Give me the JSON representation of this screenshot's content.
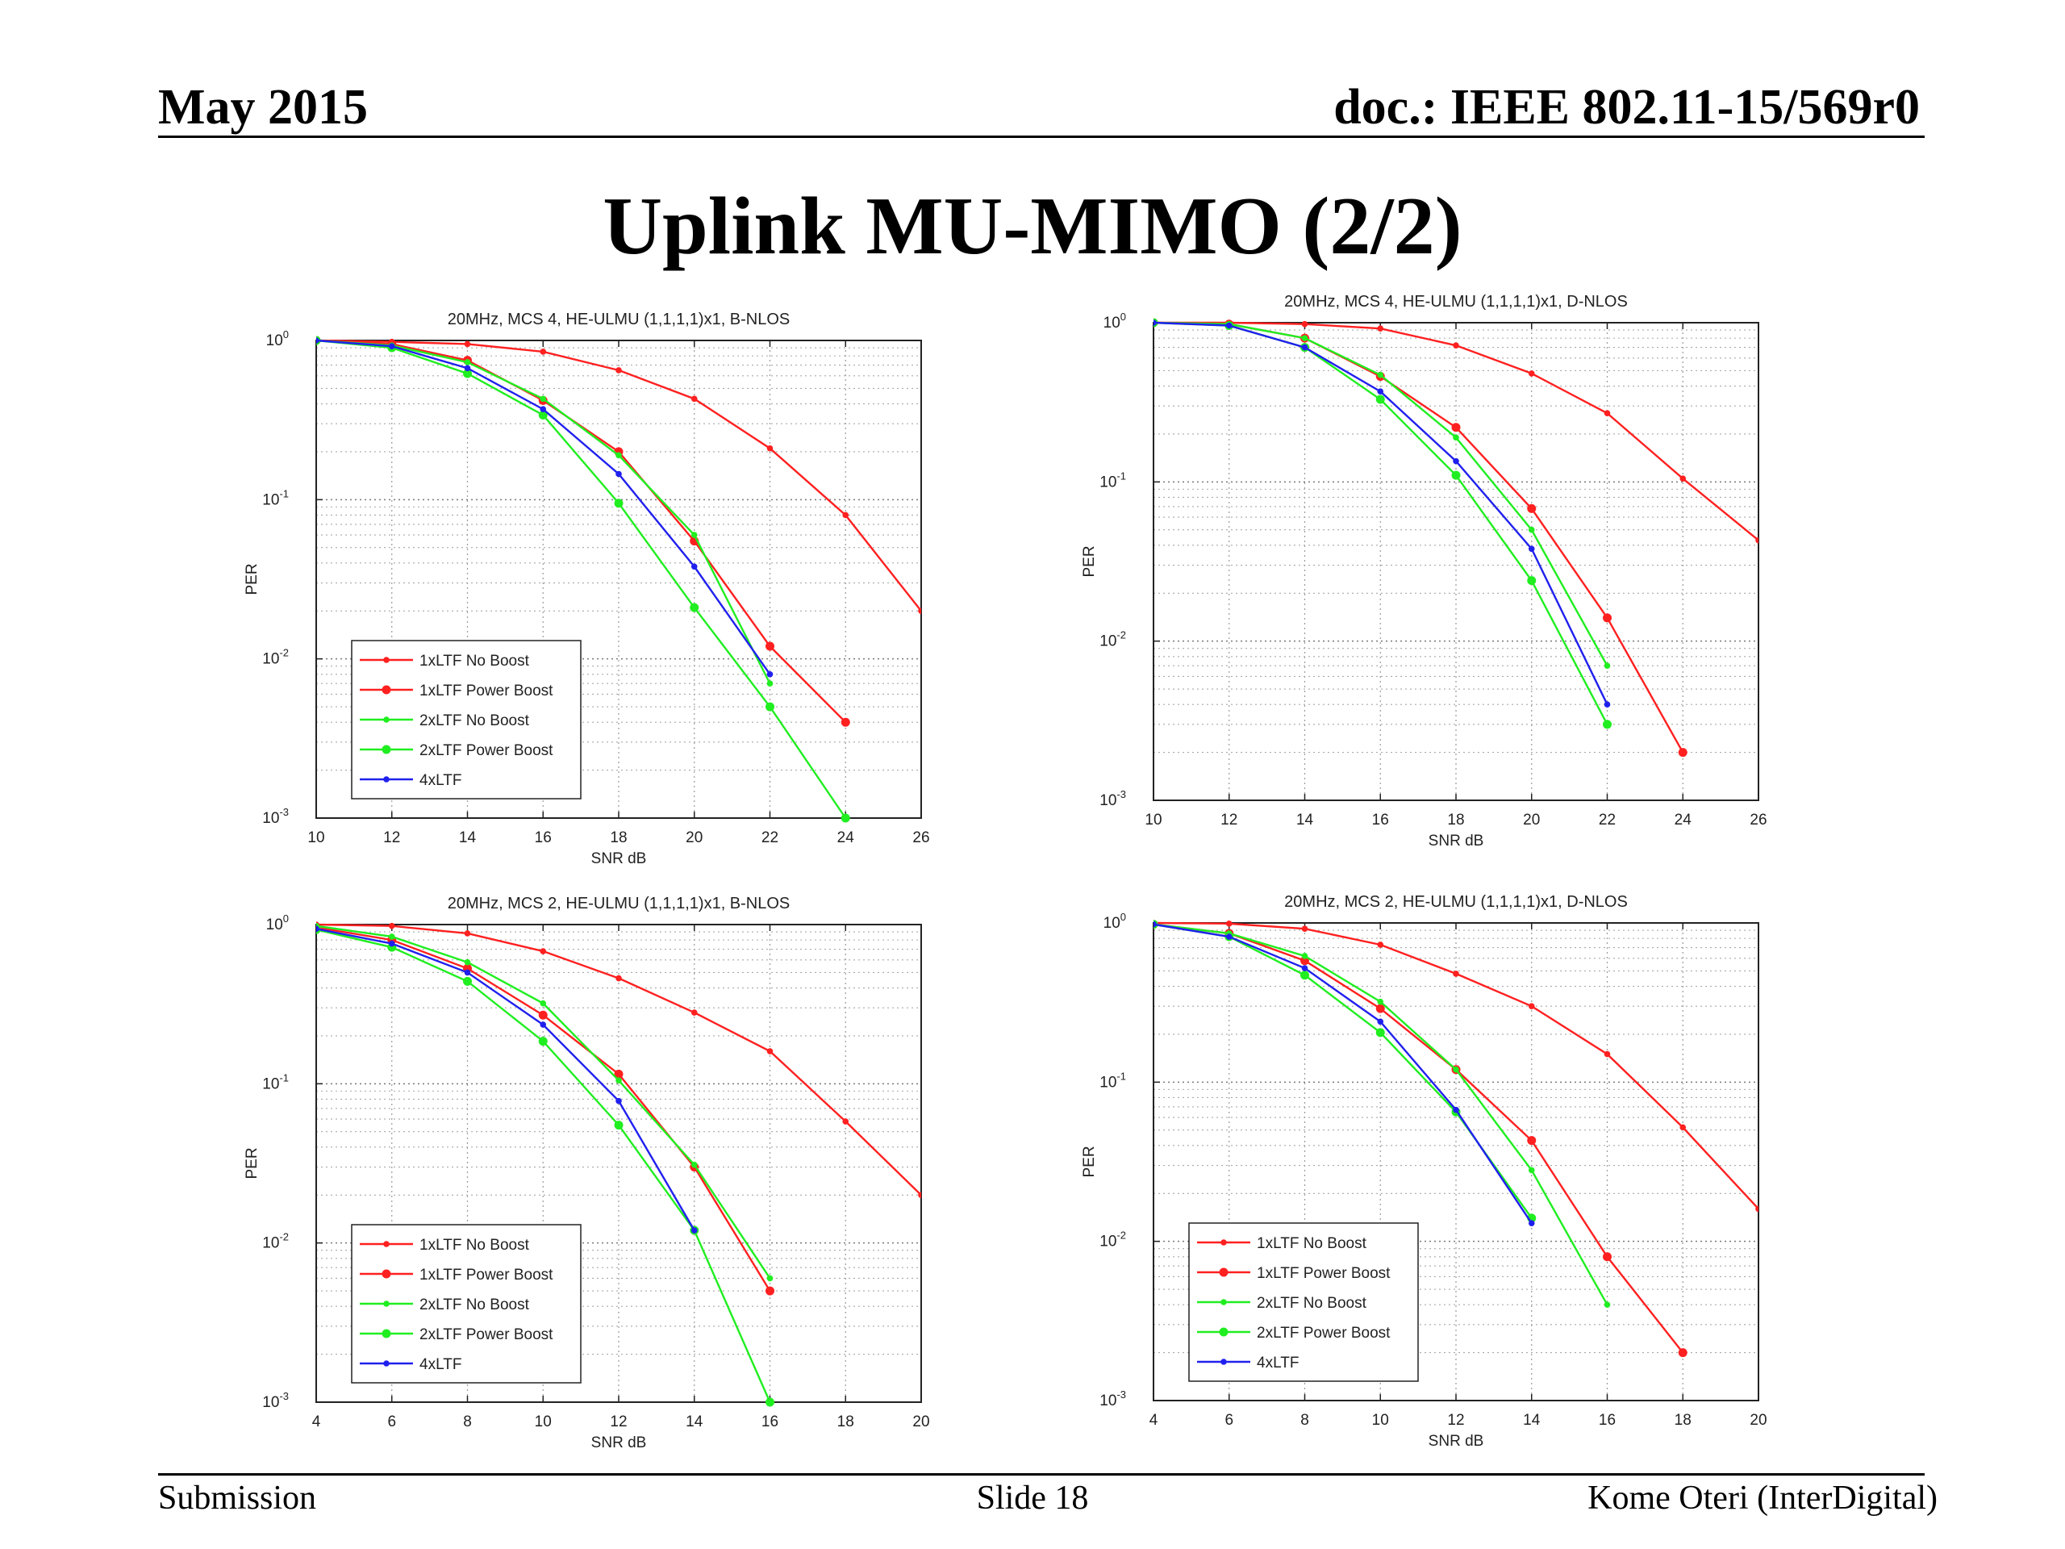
{
  "header": {
    "date": "May 2015",
    "doc_id": "doc.: IEEE 802.11-15/569r0"
  },
  "slide": {
    "title": "Uplink MU-MIMO (2/2)"
  },
  "footer": {
    "left": "Submission",
    "center": "Slide 18",
    "right": "Kome Oteri (InterDigital)"
  },
  "chart_data": [
    {
      "type": "line",
      "title": "20MHz, MCS 4, HE-ULMU (1,1,1,1)x1, B-NLOS",
      "xlabel": "SNR dB",
      "ylabel": "PER",
      "xlim": [
        10,
        26
      ],
      "ylim": [
        0.001,
        1
      ],
      "y_scale": "log",
      "x_ticks": [
        "10",
        "12",
        "14",
        "16",
        "18",
        "20",
        "22",
        "24",
        "26"
      ],
      "y_ticks": [
        {
          "base": "10",
          "exp": "0"
        },
        {
          "base": "10",
          "exp": "-1"
        },
        {
          "base": "10",
          "exp": "-2"
        },
        {
          "base": "10",
          "exp": "-3"
        }
      ],
      "grid": true,
      "legend_position": "lower-left",
      "series": [
        {
          "name": "1xLTF No Boost",
          "color": "#ff2020",
          "marker": "dot",
          "x": [
            10,
            12,
            14,
            16,
            18,
            20,
            22,
            24,
            26
          ],
          "y": [
            1,
            0.98,
            0.95,
            0.85,
            0.65,
            0.43,
            0.21,
            0.08,
            0.02
          ]
        },
        {
          "name": "1xLTF Power Boost",
          "color": "#ff2020",
          "marker": "star",
          "x": [
            10,
            12,
            14,
            16,
            18,
            20,
            22,
            24
          ],
          "y": [
            1,
            0.95,
            0.75,
            0.42,
            0.2,
            0.055,
            0.012,
            0.004
          ]
        },
        {
          "name": "2xLTF No Boost",
          "color": "#20ee20",
          "marker": "dot",
          "x": [
            10,
            12,
            14,
            16,
            18,
            20,
            22
          ],
          "y": [
            1,
            0.93,
            0.73,
            0.43,
            0.19,
            0.06,
            0.007
          ]
        },
        {
          "name": "2xLTF Power Boost",
          "color": "#20ee20",
          "marker": "star",
          "x": [
            10,
            12,
            14,
            16,
            18,
            20,
            22,
            24
          ],
          "y": [
            1,
            0.9,
            0.62,
            0.34,
            0.095,
            0.021,
            0.005,
            0.001
          ]
        },
        {
          "name": "4xLTF",
          "color": "#2020ee",
          "marker": "dot",
          "x": [
            10,
            12,
            14,
            16,
            18,
            20,
            22
          ],
          "y": [
            1,
            0.92,
            0.67,
            0.37,
            0.145,
            0.038,
            0.008
          ]
        }
      ]
    },
    {
      "type": "line",
      "title": "20MHz, MCS 4, HE-ULMU (1,1,1,1)x1, D-NLOS",
      "xlabel": "SNR dB",
      "ylabel": "PER",
      "xlim": [
        10,
        26
      ],
      "ylim": [
        0.001,
        1
      ],
      "y_scale": "log",
      "x_ticks": [
        "10",
        "12",
        "14",
        "16",
        "18",
        "20",
        "22",
        "24",
        "26"
      ],
      "y_ticks": [
        {
          "base": "10",
          "exp": "0"
        },
        {
          "base": "10",
          "exp": "-1"
        },
        {
          "base": "10",
          "exp": "-2"
        },
        {
          "base": "10",
          "exp": "-3"
        }
      ],
      "grid": true,
      "legend_position": "none",
      "series": [
        {
          "name": "1xLTF No Boost",
          "color": "#ff2020",
          "marker": "dot",
          "x": [
            10,
            12,
            14,
            16,
            18,
            20,
            22,
            24,
            26
          ],
          "y": [
            1,
            1,
            0.98,
            0.92,
            0.72,
            0.48,
            0.27,
            0.105,
            0.043
          ]
        },
        {
          "name": "1xLTF Power Boost",
          "color": "#ff2020",
          "marker": "star",
          "x": [
            10,
            12,
            14,
            16,
            18,
            20,
            22,
            24
          ],
          "y": [
            1,
            0.98,
            0.8,
            0.46,
            0.22,
            0.068,
            0.014,
            0.002
          ]
        },
        {
          "name": "2xLTF No Boost",
          "color": "#20ee20",
          "marker": "dot",
          "x": [
            10,
            12,
            14,
            16,
            18,
            20,
            22
          ],
          "y": [
            1,
            0.98,
            0.8,
            0.47,
            0.19,
            0.05,
            0.007
          ]
        },
        {
          "name": "2xLTF Power Boost",
          "color": "#20ee20",
          "marker": "star",
          "x": [
            10,
            12,
            14,
            16,
            18,
            20,
            22
          ],
          "y": [
            1,
            0.96,
            0.7,
            0.33,
            0.11,
            0.024,
            0.003
          ]
        },
        {
          "name": "4xLTF",
          "color": "#2020ee",
          "marker": "dot",
          "x": [
            10,
            12,
            14,
            16,
            18,
            20,
            22
          ],
          "y": [
            1,
            0.96,
            0.7,
            0.37,
            0.135,
            0.038,
            0.004
          ]
        }
      ]
    },
    {
      "type": "line",
      "title": "20MHz, MCS 2, HE-ULMU (1,1,1,1)x1, B-NLOS",
      "xlabel": "SNR dB",
      "ylabel": "PER",
      "xlim": [
        4,
        20
      ],
      "ylim": [
        0.001,
        1
      ],
      "y_scale": "log",
      "x_ticks": [
        "4",
        "6",
        "8",
        "10",
        "12",
        "14",
        "16",
        "18",
        "20"
      ],
      "y_ticks": [
        {
          "base": "10",
          "exp": "0"
        },
        {
          "base": "10",
          "exp": "-1"
        },
        {
          "base": "10",
          "exp": "-2"
        },
        {
          "base": "10",
          "exp": "-3"
        }
      ],
      "grid": true,
      "legend_position": "lower-left",
      "series": [
        {
          "name": "1xLTF No Boost",
          "color": "#ff2020",
          "marker": "dot",
          "x": [
            4,
            6,
            8,
            10,
            12,
            14,
            16,
            18,
            20
          ],
          "y": [
            1,
            0.98,
            0.88,
            0.68,
            0.46,
            0.28,
            0.16,
            0.058,
            0.02
          ]
        },
        {
          "name": "1xLTF Power Boost",
          "color": "#ff2020",
          "marker": "star",
          "x": [
            4,
            6,
            8,
            10,
            12,
            14,
            16
          ],
          "y": [
            0.96,
            0.8,
            0.53,
            0.27,
            0.115,
            0.03,
            0.005
          ]
        },
        {
          "name": "2xLTF No Boost",
          "color": "#20ee20",
          "marker": "dot",
          "x": [
            4,
            6,
            8,
            10,
            12,
            14,
            16
          ],
          "y": [
            0.98,
            0.84,
            0.58,
            0.32,
            0.105,
            0.031,
            0.006
          ]
        },
        {
          "name": "2xLTF Power Boost",
          "color": "#20ee20",
          "marker": "star",
          "x": [
            4,
            6,
            8,
            10,
            12,
            14,
            16
          ],
          "y": [
            0.93,
            0.72,
            0.44,
            0.185,
            0.055,
            0.012,
            0.001
          ]
        },
        {
          "name": "4xLTF",
          "color": "#2020ee",
          "marker": "dot",
          "x": [
            4,
            6,
            8,
            10,
            12,
            14
          ],
          "y": [
            0.94,
            0.76,
            0.5,
            0.235,
            0.078,
            0.012
          ]
        }
      ]
    },
    {
      "type": "line",
      "title": "20MHz, MCS 2, HE-ULMU (1,1,1,1)x1, D-NLOS",
      "xlabel": "SNR dB",
      "ylabel": "PER",
      "xlim": [
        4,
        20
      ],
      "ylim": [
        0.001,
        1
      ],
      "y_scale": "log",
      "x_ticks": [
        "4",
        "6",
        "8",
        "10",
        "12",
        "14",
        "16",
        "18",
        "20"
      ],
      "y_ticks": [
        {
          "base": "10",
          "exp": "0"
        },
        {
          "base": "10",
          "exp": "-1"
        },
        {
          "base": "10",
          "exp": "-2"
        },
        {
          "base": "10",
          "exp": "-3"
        }
      ],
      "grid": true,
      "legend_position": "lower-left",
      "series": [
        {
          "name": "1xLTF No Boost",
          "color": "#ff2020",
          "marker": "dot",
          "x": [
            4,
            6,
            8,
            10,
            12,
            14,
            16,
            18,
            20
          ],
          "y": [
            1,
            0.99,
            0.92,
            0.73,
            0.48,
            0.3,
            0.15,
            0.052,
            0.016
          ]
        },
        {
          "name": "1xLTF Power Boost",
          "color": "#ff2020",
          "marker": "star",
          "x": [
            4,
            6,
            8,
            10,
            12,
            14,
            16,
            18
          ],
          "y": [
            0.98,
            0.86,
            0.58,
            0.29,
            0.12,
            0.043,
            0.008,
            0.002
          ]
        },
        {
          "name": "2xLTF No Boost",
          "color": "#20ee20",
          "marker": "dot",
          "x": [
            4,
            6,
            8,
            10,
            12,
            14,
            16
          ],
          "y": [
            0.98,
            0.86,
            0.62,
            0.32,
            0.12,
            0.028,
            0.004
          ]
        },
        {
          "name": "2xLTF Power Boost",
          "color": "#20ee20",
          "marker": "star",
          "x": [
            4,
            6,
            8,
            10,
            12,
            14
          ],
          "y": [
            0.98,
            0.82,
            0.47,
            0.205,
            0.065,
            0.014
          ]
        },
        {
          "name": "4xLTF",
          "color": "#2020ee",
          "marker": "dot",
          "x": [
            4,
            6,
            8,
            10,
            12,
            14
          ],
          "y": [
            0.98,
            0.82,
            0.52,
            0.24,
            0.067,
            0.013
          ]
        }
      ]
    }
  ]
}
